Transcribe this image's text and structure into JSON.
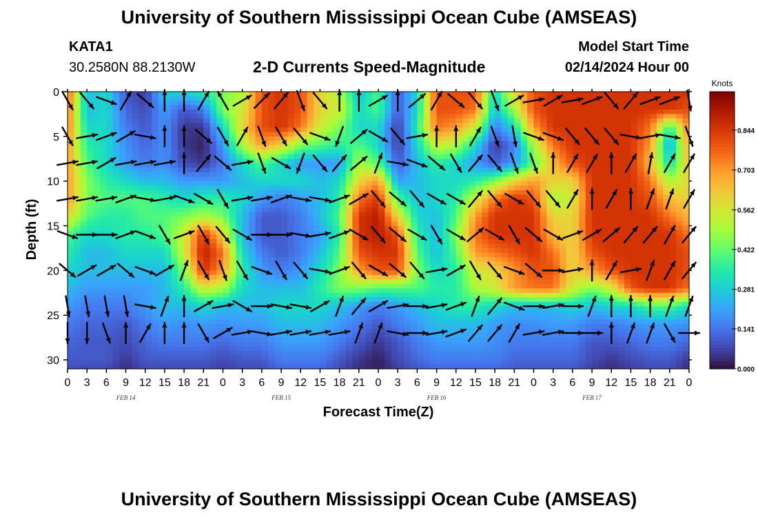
{
  "header": {
    "title": "University of Southern Mississippi Ocean Cube (AMSEAS)",
    "station_id": "KATA1",
    "station_coords": "30.2580N  88.2130W",
    "plot_title": "2-D Currents Speed-Magnitude",
    "model_start_label": "Model Start Time",
    "model_start_value": "02/14/2024 Hour 00"
  },
  "footer": {
    "title": "University of Southern Mississippi Ocean Cube (AMSEAS)"
  },
  "chart_data": {
    "type": "heatmap",
    "title": "2-D Currents Speed-Magnitude",
    "xlabel": "Forecast Time(Z)",
    "ylabel": "Depth (ft)",
    "x_tick_labels": [
      "0",
      "3",
      "6",
      "9",
      "12",
      "15",
      "18",
      "21",
      "0",
      "3",
      "6",
      "9",
      "12",
      "15",
      "18",
      "21",
      "0",
      "3",
      "6",
      "9",
      "12",
      "15",
      "18",
      "21",
      "0",
      "3",
      "6",
      "9",
      "12",
      "15",
      "18",
      "21",
      "0"
    ],
    "x_hours": [
      0,
      3,
      6,
      9,
      12,
      15,
      18,
      21,
      24,
      27,
      30,
      33,
      36,
      39,
      42,
      45,
      48,
      51,
      54,
      57,
      60,
      63,
      66,
      69,
      72,
      75,
      78,
      81,
      84,
      87,
      90,
      93,
      96
    ],
    "date_labels": [
      {
        "label": "FEB 14",
        "hour": 9
      },
      {
        "label": "FEB 15",
        "hour": 33
      },
      {
        "label": "FEB 16",
        "hour": 57
      },
      {
        "label": "FEB 17",
        "hour": 81
      }
    ],
    "xlim": [
      0,
      96
    ],
    "y_ticks": [
      0,
      5,
      10,
      15,
      20,
      25,
      30
    ],
    "ylim": [
      31,
      0
    ],
    "colorbar": {
      "unit": "Knots",
      "ticks": [
        "0.000",
        "0.141",
        "0.281",
        "0.422",
        "0.562",
        "0.703",
        "0.844"
      ],
      "tick_values": [
        0.0,
        0.141,
        0.281,
        0.422,
        0.562,
        0.703,
        0.844
      ],
      "range": [
        0,
        0.98
      ],
      "colors": [
        "#30123b",
        "#4145ab",
        "#4675ed",
        "#39a2fc",
        "#1bcfd4",
        "#24eca6",
        "#61fc6c",
        "#a4fc3b",
        "#d1e834",
        "#f3c63a",
        "#fe9b2d",
        "#f36315",
        "#d93806",
        "#b11901",
        "#7a0403"
      ]
    },
    "grid": false,
    "speed_field_knots": {
      "depths_ft": [
        0,
        2,
        4,
        6,
        8,
        10,
        12,
        14,
        16,
        18,
        20,
        22,
        24,
        26,
        28,
        30,
        31
      ],
      "hours": [
        0,
        3,
        6,
        9,
        12,
        15,
        18,
        21,
        24,
        27,
        30,
        33,
        36,
        39,
        42,
        45,
        48,
        51,
        54,
        57,
        60,
        63,
        66,
        69,
        72,
        75,
        78,
        81,
        84,
        87,
        90,
        93,
        96
      ],
      "values": [
        [
          0.8,
          0.25,
          0.3,
          0.1,
          0.05,
          0.28,
          0.3,
          0.35,
          0.45,
          0.5,
          0.8,
          0.85,
          0.8,
          0.6,
          0.5,
          0.25,
          0.4,
          0.1,
          0.3,
          0.8,
          0.8,
          0.8,
          0.3,
          0.6,
          0.8,
          0.85,
          0.85,
          0.85,
          0.85,
          0.85,
          0.85,
          0.85,
          0.85
        ],
        [
          0.75,
          0.25,
          0.3,
          0.12,
          0.08,
          0.2,
          0.1,
          0.15,
          0.45,
          0.55,
          0.8,
          0.85,
          0.8,
          0.6,
          0.55,
          0.3,
          0.4,
          0.1,
          0.3,
          0.8,
          0.8,
          0.75,
          0.25,
          0.5,
          0.8,
          0.85,
          0.85,
          0.85,
          0.85,
          0.85,
          0.85,
          0.85,
          0.8
        ],
        [
          0.75,
          0.3,
          0.3,
          0.15,
          0.1,
          0.18,
          0.05,
          0.05,
          0.3,
          0.6,
          0.8,
          0.85,
          0.75,
          0.55,
          0.45,
          0.3,
          0.3,
          0.05,
          0.35,
          0.75,
          0.7,
          0.55,
          0.15,
          0.3,
          0.7,
          0.85,
          0.85,
          0.85,
          0.85,
          0.85,
          0.75,
          0.35,
          0.75
        ],
        [
          0.7,
          0.35,
          0.3,
          0.18,
          0.12,
          0.18,
          0.05,
          0.02,
          0.2,
          0.5,
          0.7,
          0.6,
          0.45,
          0.4,
          0.35,
          0.4,
          0.3,
          0.05,
          0.3,
          0.55,
          0.5,
          0.3,
          0.05,
          0.15,
          0.5,
          0.75,
          0.85,
          0.85,
          0.85,
          0.85,
          0.7,
          0.2,
          0.7
        ],
        [
          0.7,
          0.4,
          0.3,
          0.2,
          0.15,
          0.18,
          0.08,
          0.05,
          0.15,
          0.3,
          0.4,
          0.3,
          0.2,
          0.2,
          0.2,
          0.5,
          0.4,
          0.1,
          0.25,
          0.35,
          0.3,
          0.2,
          0.1,
          0.2,
          0.4,
          0.65,
          0.8,
          0.85,
          0.85,
          0.85,
          0.65,
          0.3,
          0.65
        ],
        [
          0.7,
          0.45,
          0.35,
          0.3,
          0.25,
          0.25,
          0.2,
          0.2,
          0.2,
          0.25,
          0.3,
          0.3,
          0.3,
          0.25,
          0.3,
          0.6,
          0.7,
          0.2,
          0.25,
          0.3,
          0.3,
          0.35,
          0.45,
          0.6,
          0.7,
          0.6,
          0.6,
          0.85,
          0.85,
          0.85,
          0.75,
          0.5,
          0.6
        ],
        [
          0.7,
          0.45,
          0.4,
          0.4,
          0.4,
          0.35,
          0.3,
          0.35,
          0.35,
          0.3,
          0.2,
          0.15,
          0.2,
          0.25,
          0.35,
          0.75,
          0.85,
          0.4,
          0.25,
          0.3,
          0.35,
          0.55,
          0.75,
          0.85,
          0.8,
          0.5,
          0.55,
          0.85,
          0.85,
          0.85,
          0.8,
          0.65,
          0.6
        ],
        [
          0.6,
          0.4,
          0.35,
          0.35,
          0.4,
          0.4,
          0.45,
          0.5,
          0.45,
          0.25,
          0.1,
          0.1,
          0.15,
          0.25,
          0.4,
          0.85,
          0.9,
          0.6,
          0.3,
          0.25,
          0.4,
          0.7,
          0.85,
          0.85,
          0.85,
          0.6,
          0.6,
          0.85,
          0.85,
          0.85,
          0.85,
          0.75,
          0.65
        ],
        [
          0.4,
          0.3,
          0.3,
          0.35,
          0.35,
          0.4,
          0.55,
          0.85,
          0.6,
          0.25,
          0.1,
          0.1,
          0.15,
          0.2,
          0.35,
          0.85,
          0.9,
          0.8,
          0.35,
          0.25,
          0.45,
          0.75,
          0.85,
          0.85,
          0.85,
          0.65,
          0.6,
          0.85,
          0.85,
          0.85,
          0.85,
          0.85,
          0.75
        ],
        [
          0.35,
          0.25,
          0.25,
          0.3,
          0.3,
          0.3,
          0.55,
          0.9,
          0.75,
          0.3,
          0.15,
          0.1,
          0.15,
          0.25,
          0.4,
          0.8,
          0.85,
          0.85,
          0.4,
          0.25,
          0.4,
          0.7,
          0.75,
          0.8,
          0.85,
          0.75,
          0.6,
          0.8,
          0.85,
          0.85,
          0.85,
          0.85,
          0.8
        ],
        [
          0.3,
          0.25,
          0.25,
          0.25,
          0.25,
          0.25,
          0.45,
          0.85,
          0.7,
          0.35,
          0.2,
          0.15,
          0.2,
          0.3,
          0.45,
          0.7,
          0.8,
          0.8,
          0.45,
          0.3,
          0.35,
          0.55,
          0.6,
          0.7,
          0.8,
          0.8,
          0.6,
          0.7,
          0.8,
          0.85,
          0.85,
          0.85,
          0.8
        ],
        [
          0.25,
          0.2,
          0.2,
          0.2,
          0.2,
          0.25,
          0.35,
          0.55,
          0.5,
          0.3,
          0.25,
          0.25,
          0.25,
          0.35,
          0.45,
          0.45,
          0.4,
          0.4,
          0.4,
          0.35,
          0.35,
          0.5,
          0.55,
          0.7,
          0.75,
          0.75,
          0.55,
          0.45,
          0.55,
          0.8,
          0.85,
          0.85,
          0.75
        ],
        [
          0.2,
          0.15,
          0.15,
          0.15,
          0.2,
          0.25,
          0.25,
          0.3,
          0.25,
          0.25,
          0.25,
          0.3,
          0.3,
          0.3,
          0.25,
          0.2,
          0.15,
          0.2,
          0.25,
          0.3,
          0.35,
          0.35,
          0.3,
          0.25,
          0.25,
          0.25,
          0.3,
          0.25,
          0.3,
          0.3,
          0.4,
          0.4,
          0.3
        ],
        [
          0.15,
          0.12,
          0.12,
          0.1,
          0.15,
          0.2,
          0.18,
          0.2,
          0.18,
          0.2,
          0.2,
          0.25,
          0.25,
          0.25,
          0.2,
          0.15,
          0.1,
          0.15,
          0.2,
          0.25,
          0.25,
          0.25,
          0.2,
          0.18,
          0.18,
          0.2,
          0.2,
          0.15,
          0.15,
          0.18,
          0.2,
          0.2,
          0.18
        ],
        [
          0.12,
          0.1,
          0.1,
          0.08,
          0.12,
          0.15,
          0.15,
          0.15,
          0.12,
          0.15,
          0.15,
          0.2,
          0.2,
          0.2,
          0.15,
          0.1,
          0.05,
          0.1,
          0.15,
          0.2,
          0.2,
          0.2,
          0.18,
          0.15,
          0.15,
          0.15,
          0.15,
          0.1,
          0.1,
          0.12,
          0.15,
          0.15,
          0.12
        ],
        [
          0.1,
          0.1,
          0.1,
          0.05,
          0.1,
          0.1,
          0.1,
          0.1,
          0.08,
          0.1,
          0.1,
          0.15,
          0.15,
          0.15,
          0.1,
          0.05,
          0.02,
          0.08,
          0.12,
          0.15,
          0.15,
          0.15,
          0.15,
          0.12,
          0.12,
          0.12,
          0.12,
          0.08,
          0.05,
          0.08,
          0.1,
          0.1,
          0.05
        ],
        [
          0.08,
          0.08,
          0.08,
          0.04,
          0.08,
          0.08,
          0.08,
          0.08,
          0.06,
          0.08,
          0.08,
          0.12,
          0.12,
          0.12,
          0.08,
          0.04,
          0.02,
          0.06,
          0.1,
          0.12,
          0.12,
          0.12,
          0.12,
          0.1,
          0.1,
          0.1,
          0.1,
          0.06,
          0.04,
          0.06,
          0.08,
          0.08,
          0.04
        ]
      ]
    },
    "vectors": {
      "hours": [
        0,
        3,
        6,
        9,
        12,
        15,
        18,
        21,
        24,
        27,
        30,
        33,
        36,
        39,
        42,
        45,
        48,
        51,
        54,
        57,
        60,
        63,
        66,
        69,
        72,
        75,
        78,
        81,
        84,
        87,
        90,
        93,
        96
      ],
      "depths_ft": [
        1,
        5,
        8,
        12,
        16,
        20,
        24,
        27
      ],
      "direction_deg": [
        [
          150,
          140,
          110,
          30,
          130,
          0,
          0,
          30,
          330,
          60,
          45,
          40,
          160,
          140,
          0,
          0,
          60,
          0,
          50,
          30,
          130,
          140,
          160,
          60,
          80,
          60,
          80,
          70,
          140,
          40,
          70,
          70,
          170
        ],
        [
          150,
          80,
          70,
          60,
          100,
          0,
          0,
          130,
          150,
          30,
          160,
          150,
          140,
          110,
          200,
          50,
          120,
          140,
          80,
          0,
          0,
          30,
          160,
          170,
          110,
          110,
          140,
          140,
          140,
          100,
          80,
          100,
          160
        ],
        [
          80,
          80,
          60,
          80,
          80,
          80,
          0,
          40,
          130,
          80,
          160,
          120,
          200,
          140,
          40,
          50,
          20,
          100,
          110,
          130,
          150,
          40,
          140,
          160,
          160,
          0,
          30,
          30,
          0,
          30,
          10,
          30,
          30
        ],
        [
          80,
          80,
          80,
          70,
          100,
          80,
          110,
          120,
          150,
          80,
          80,
          70,
          100,
          100,
          70,
          60,
          140,
          130,
          140,
          120,
          120,
          40,
          140,
          120,
          140,
          140,
          30,
          0,
          30,
          0,
          20,
          20,
          30
        ],
        [
          110,
          90,
          90,
          70,
          110,
          150,
          70,
          150,
          140,
          120,
          90,
          90,
          100,
          80,
          70,
          120,
          140,
          130,
          120,
          150,
          120,
          50,
          120,
          150,
          130,
          120,
          70,
          60,
          50,
          40,
          40,
          30,
          40
        ],
        [
          130,
          60,
          60,
          130,
          110,
          60,
          20,
          150,
          160,
          150,
          110,
          150,
          140,
          100,
          70,
          140,
          120,
          130,
          140,
          80,
          60,
          150,
          140,
          110,
          130,
          90,
          80,
          0,
          30,
          80,
          20,
          30,
          40
        ],
        [
          170,
          170,
          170,
          170,
          100,
          20,
          0,
          60,
          80,
          120,
          90,
          100,
          100,
          60,
          20,
          40,
          60,
          80,
          90,
          80,
          70,
          20,
          40,
          110,
          90,
          80,
          90,
          20,
          0,
          0,
          0,
          20,
          20
        ],
        [
          180,
          180,
          160,
          0,
          30,
          0,
          0,
          150,
          60,
          80,
          100,
          80,
          80,
          80,
          80,
          20,
          20,
          100,
          90,
          80,
          70,
          40,
          40,
          30,
          80,
          80,
          90,
          90,
          0,
          20,
          20,
          150,
          90
        ]
      ]
    }
  }
}
